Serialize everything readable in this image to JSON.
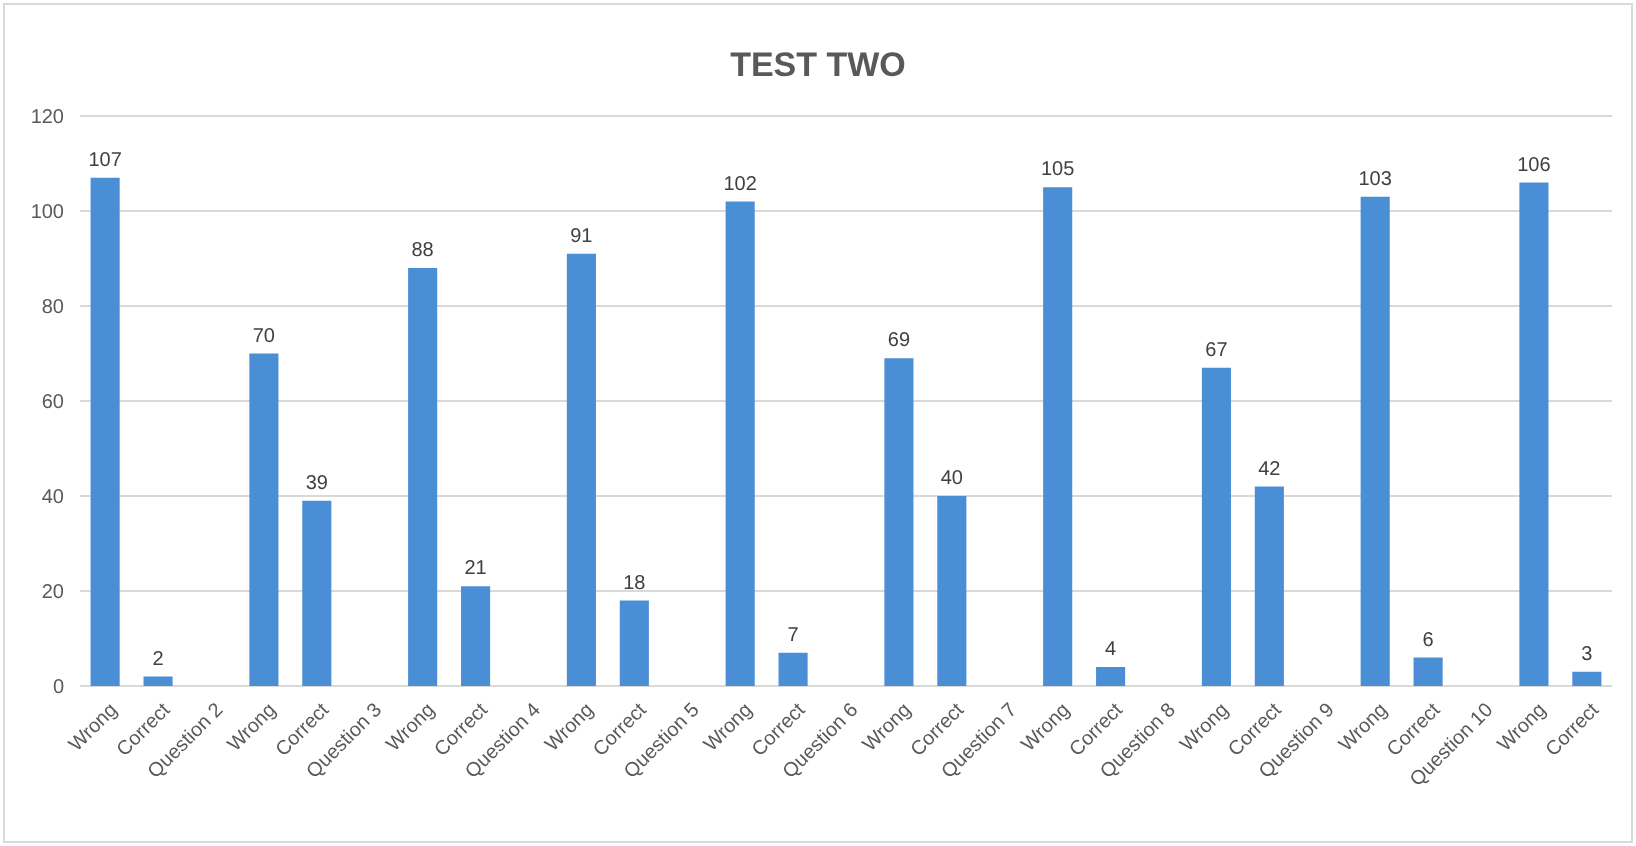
{
  "chart_data": {
    "type": "bar",
    "title": "TEST TWO",
    "categories": [
      "Wrong",
      "Correct",
      "Question 2",
      "Wrong",
      "Correct",
      "Question 3",
      "Wrong",
      "Correct",
      "Question 4",
      "Wrong",
      "Correct",
      "Question 5",
      "Wrong",
      "Correct",
      "Question 6",
      "Wrong",
      "Correct",
      "Question 7",
      "Wrong",
      "Correct",
      "Question 8",
      "Wrong",
      "Correct",
      "Question 9",
      "Wrong",
      "Correct",
      "Question 10",
      "Wrong",
      "Correct"
    ],
    "values": [
      107,
      2,
      null,
      70,
      39,
      null,
      88,
      21,
      null,
      91,
      18,
      null,
      102,
      7,
      null,
      69,
      40,
      null,
      105,
      4,
      null,
      67,
      42,
      null,
      103,
      6,
      null,
      106,
      3
    ],
    "color": "#4a8fd6",
    "ylim": [
      0,
      120
    ],
    "yticks": [
      0,
      20,
      40,
      60,
      80,
      100,
      120
    ],
    "grid": true,
    "data_labels": true
  }
}
